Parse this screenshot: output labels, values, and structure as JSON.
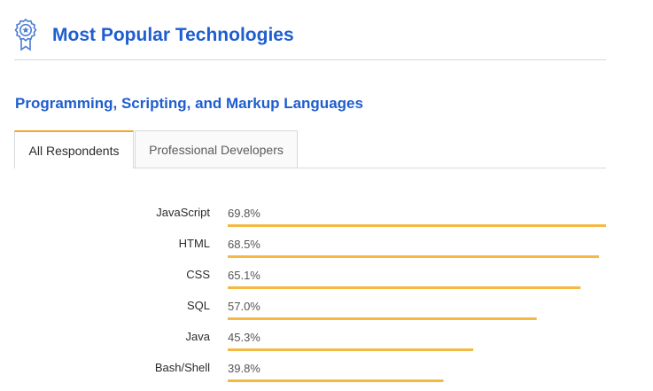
{
  "header": {
    "title": "Most Popular Technologies",
    "icon": "award-badge-icon"
  },
  "section": {
    "title": "Programming, Scripting, and Markup Languages"
  },
  "tabs": [
    {
      "label": "All Respondents",
      "active": true
    },
    {
      "label": "Professional Developers",
      "active": false
    }
  ],
  "colors": {
    "accent": "#1f5ecf",
    "bar": "#f4b942",
    "tab_active_border": "#f4a62a"
  },
  "chart_data": {
    "type": "bar",
    "orientation": "horizontal",
    "categories": [
      "JavaScript",
      "HTML",
      "CSS",
      "SQL",
      "Java",
      "Bash/Shell"
    ],
    "values": [
      69.8,
      68.5,
      65.1,
      57.0,
      45.3,
      39.8
    ],
    "value_labels": [
      "69.8%",
      "68.5%",
      "65.1%",
      "57.0%",
      "45.3%",
      "39.8%"
    ],
    "unit": "%",
    "xlim": [
      0,
      69.8
    ],
    "grid": false,
    "legend": "none"
  }
}
